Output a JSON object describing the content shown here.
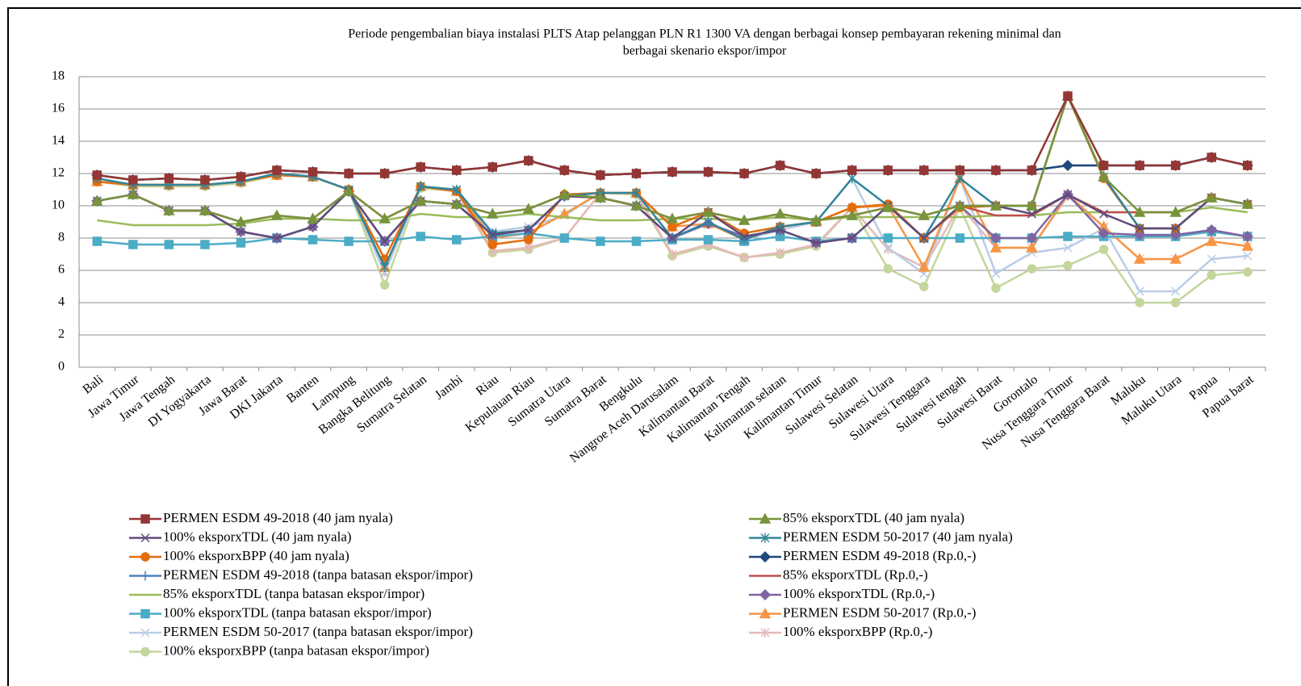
{
  "chart_data": {
    "type": "line",
    "title": [
      "Periode pengembalian biaya instalasi PLTS Atap pelanggan PLN R1 1300 VA dengan berbagai konsep pembayaran rekening minimal dan",
      "berbagai skenario ekspor/impor"
    ],
    "categories": [
      "Bali",
      "Jawa Timur",
      "Jawa Tengah",
      "DI Yogyakarta",
      "Jawa Barat",
      "DKI Jakarta",
      "Banten",
      "Lampung",
      "Bangka Belitung",
      "Sumatra Selatan",
      "Jambi",
      "Riau",
      "Kepulauan Riau",
      "Sumatra Utara",
      "Sumatra Barat",
      "Bengkulu",
      "Nangroe Aceh Darusalam",
      "Kalimantan Barat",
      "Kalimantan Tengah",
      "Kalimantan selatan",
      "Kalimantan Timur",
      "Sulawesi Selatan",
      "Sulawesi Utara",
      "Sulawesi Tenggara",
      "Sulawesi tengah",
      "Sulawesi Barat",
      "Gorontalo",
      "Nusa Tenggara Timur",
      "Nusa Tenggara Barat",
      "Maluku",
      "Maluku Utara",
      "Papua",
      "Papua barat"
    ],
    "ylim": [
      0,
      18
    ],
    "yticks": [
      0,
      2,
      4,
      6,
      8,
      10,
      12,
      14,
      16,
      18
    ],
    "grid": true,
    "series": [
      {
        "name": "PERMEN ESDM 49-2018 (40 jam nyala)",
        "color": "#943634",
        "marker": "square",
        "values": [
          11.9,
          11.6,
          11.7,
          11.6,
          11.8,
          12.2,
          12.1,
          12.0,
          12.0,
          12.4,
          12.2,
          12.4,
          12.8,
          12.2,
          11.9,
          12.0,
          12.1,
          12.1,
          12.0,
          12.5,
          12.0,
          12.2,
          12.2,
          12.2,
          12.2,
          12.2,
          12.2,
          16.8,
          12.5,
          12.5,
          12.5,
          13.0,
          12.5
        ]
      },
      {
        "name": "85% eksporxTDL (40 jam nyala)",
        "color": "#77933c",
        "marker": "triangle",
        "values": [
          10.3,
          10.7,
          9.7,
          9.7,
          9.0,
          9.4,
          9.2,
          10.9,
          9.2,
          10.3,
          10.1,
          9.5,
          9.8,
          10.7,
          10.5,
          10.0,
          9.2,
          9.6,
          9.1,
          9.5,
          9.1,
          9.4,
          9.9,
          9.4,
          10.0,
          10.0,
          10.0,
          16.8,
          11.8,
          9.6,
          9.6,
          10.5,
          10.1
        ]
      },
      {
        "name": "100% eksporxTDL (40 jam nyala)",
        "color": "#604a7b",
        "marker": "x",
        "values": [
          10.3,
          10.7,
          9.7,
          9.7,
          8.4,
          8.0,
          8.7,
          10.9,
          7.8,
          10.3,
          10.1,
          8.2,
          8.5,
          10.6,
          10.5,
          10.0,
          8.0,
          9.6,
          8.1,
          8.5,
          7.7,
          8.0,
          10.0,
          8.0,
          10.0,
          10.0,
          9.5,
          10.7,
          9.5,
          8.6,
          8.6,
          10.5,
          10.1
        ]
      },
      {
        "name": "PERMEN ESDM 50-2017 (40 jam nyala)",
        "color": "#31859c",
        "marker": "star",
        "values": [
          11.7,
          11.3,
          11.3,
          11.3,
          11.5,
          12.0,
          11.8,
          11.0,
          6.2,
          11.2,
          11.0,
          8.3,
          8.5,
          10.6,
          10.8,
          10.8,
          8.0,
          9.0,
          7.9,
          8.7,
          9.0,
          11.7,
          10.0,
          8.0,
          11.7,
          10.0,
          10.0,
          16.8,
          11.8,
          8.6,
          8.6,
          10.5,
          10.1
        ]
      },
      {
        "name": "100% eksporxBPP (40 jam nyala)",
        "color": "#e46c0a",
        "marker": "circle",
        "values": [
          11.5,
          11.3,
          11.3,
          11.3,
          11.5,
          11.9,
          11.8,
          11.0,
          6.7,
          11.2,
          10.9,
          7.6,
          7.9,
          10.7,
          10.8,
          10.8,
          8.7,
          9.6,
          8.3,
          8.7,
          9.0,
          9.9,
          10.1,
          8.0,
          9.9,
          10.0,
          10.0,
          16.8,
          11.7,
          8.6,
          8.6,
          10.5,
          10.1
        ]
      },
      {
        "name": "PERMEN ESDM 49-2018 (Rp.0,-)",
        "color": "#1f497d",
        "marker": "diamond",
        "values": [
          11.9,
          11.6,
          11.7,
          11.6,
          11.8,
          12.2,
          12.1,
          12.0,
          12.0,
          12.4,
          12.2,
          12.4,
          12.8,
          12.2,
          11.9,
          12.0,
          12.1,
          12.1,
          12.0,
          12.5,
          12.0,
          12.2,
          12.2,
          12.2,
          12.2,
          12.2,
          12.2,
          12.5,
          12.5,
          12.5,
          12.5,
          13.0,
          12.5
        ]
      },
      {
        "name": "PERMEN ESDM 49-2018 (tanpa batasan ekspor/impor)",
        "color": "#4f81bd",
        "marker": "plus",
        "values": [
          11.9,
          11.6,
          11.7,
          11.6,
          11.8,
          12.2,
          12.1,
          12.0,
          12.0,
          12.4,
          12.2,
          12.4,
          12.8,
          12.2,
          11.9,
          12.0,
          12.1,
          12.1,
          12.0,
          12.5,
          12.0,
          12.2,
          12.2,
          12.2,
          12.2,
          12.2,
          12.2,
          12.5,
          12.5,
          12.5,
          12.5,
          13.0,
          12.5
        ]
      },
      {
        "name": "85% eksporxTDL (Rp.0,-)",
        "color": "#c0504d",
        "marker": "none",
        "values": [
          10.3,
          10.7,
          9.7,
          9.7,
          9.0,
          9.4,
          9.2,
          10.9,
          9.2,
          10.3,
          10.1,
          9.5,
          9.8,
          10.7,
          10.5,
          10.0,
          9.2,
          9.6,
          9.1,
          9.5,
          9.1,
          9.4,
          9.9,
          9.4,
          10.0,
          9.4,
          9.4,
          10.7,
          9.6,
          9.6,
          9.6,
          10.5,
          10.1
        ]
      },
      {
        "name": "85% eksporxTDL (tanpa batasan ekspor/impor)",
        "color": "#9bbb59",
        "marker": "none",
        "values": [
          9.1,
          8.8,
          8.8,
          8.8,
          8.9,
          9.2,
          9.2,
          9.1,
          9.1,
          9.5,
          9.3,
          9.3,
          9.5,
          9.3,
          9.1,
          9.1,
          9.2,
          9.2,
          9.1,
          9.3,
          9.1,
          9.3,
          9.3,
          9.3,
          9.3,
          9.4,
          9.4,
          9.6,
          9.6,
          9.6,
          9.6,
          9.9,
          9.6
        ]
      },
      {
        "name": "100% eksporxTDL (Rp.0,-)",
        "color": "#8064a2",
        "marker": "diamond",
        "values": [
          10.3,
          10.7,
          9.7,
          9.7,
          8.4,
          8.0,
          8.7,
          10.9,
          7.8,
          10.3,
          10.1,
          8.2,
          8.5,
          10.6,
          10.5,
          10.0,
          8.0,
          8.9,
          8.1,
          8.5,
          7.7,
          8.0,
          10.0,
          8.0,
          10.0,
          8.0,
          8.0,
          10.7,
          8.3,
          8.2,
          8.2,
          8.5,
          8.1
        ]
      },
      {
        "name": "100% eksporxTDL (tanpa batasan ekspor/impor)",
        "color": "#4bacc6",
        "marker": "square",
        "values": [
          7.8,
          7.6,
          7.6,
          7.6,
          7.7,
          8.0,
          7.9,
          7.8,
          7.8,
          8.1,
          7.9,
          8.1,
          8.3,
          8.0,
          7.8,
          7.8,
          7.9,
          7.9,
          7.8,
          8.1,
          7.8,
          8.0,
          8.0,
          8.0,
          8.0,
          8.0,
          8.0,
          8.1,
          8.1,
          8.1,
          8.1,
          8.4,
          8.1
        ]
      },
      {
        "name": "PERMEN ESDM 50-2017 (Rp.0,-)",
        "color": "#f79646",
        "marker": "triangle",
        "values": [
          11.5,
          11.3,
          11.3,
          11.3,
          11.5,
          11.9,
          11.8,
          11.0,
          6.2,
          11.2,
          10.9,
          8.0,
          8.3,
          9.5,
          10.8,
          10.8,
          8.7,
          8.9,
          7.9,
          8.7,
          9.0,
          9.9,
          10.0,
          6.2,
          11.7,
          7.4,
          7.4,
          10.7,
          8.7,
          6.7,
          6.7,
          7.8,
          7.5
        ]
      },
      {
        "name": "PERMEN ESDM 50-2017 (tanpa batasan ekspor/impor)",
        "color": "#b9cde5",
        "marker": "x",
        "values": [
          11.7,
          11.3,
          11.3,
          11.3,
          11.5,
          12.0,
          11.8,
          11.0,
          5.8,
          11.2,
          11.0,
          8.4,
          8.7,
          9.4,
          10.8,
          10.8,
          8.0,
          8.9,
          7.9,
          8.5,
          9.0,
          11.7,
          7.4,
          5.8,
          11.7,
          5.8,
          7.1,
          7.4,
          8.6,
          4.7,
          4.7,
          6.7,
          6.9
        ]
      },
      {
        "name": "100% eksporxBPP (Rp.0,-)",
        "color": "#e6b9b8",
        "marker": "star",
        "values": [
          11.5,
          11.3,
          11.3,
          11.3,
          11.5,
          11.9,
          11.8,
          11.0,
          5.9,
          11.2,
          10.9,
          7.2,
          7.4,
          8.0,
          10.8,
          10.8,
          7.0,
          7.6,
          6.8,
          7.1,
          7.6,
          9.9,
          7.3,
          6.2,
          10.0,
          7.4,
          7.4,
          10.6,
          8.7,
          6.7,
          6.7,
          7.8,
          7.5
        ]
      },
      {
        "name": "100% eksporxBPP (tanpa batasan ekspor/impor)",
        "color": "#c3d69b",
        "marker": "circle",
        "values": [
          11.5,
          11.2,
          11.2,
          11.2,
          11.4,
          11.9,
          11.8,
          11.0,
          5.1,
          11.1,
          10.9,
          7.1,
          7.3,
          8.0,
          10.8,
          10.7,
          6.9,
          7.5,
          6.8,
          7.0,
          7.5,
          9.9,
          6.1,
          5.0,
          9.9,
          4.9,
          6.1,
          6.3,
          7.3,
          4.0,
          4.0,
          5.7,
          5.9
        ]
      }
    ]
  }
}
